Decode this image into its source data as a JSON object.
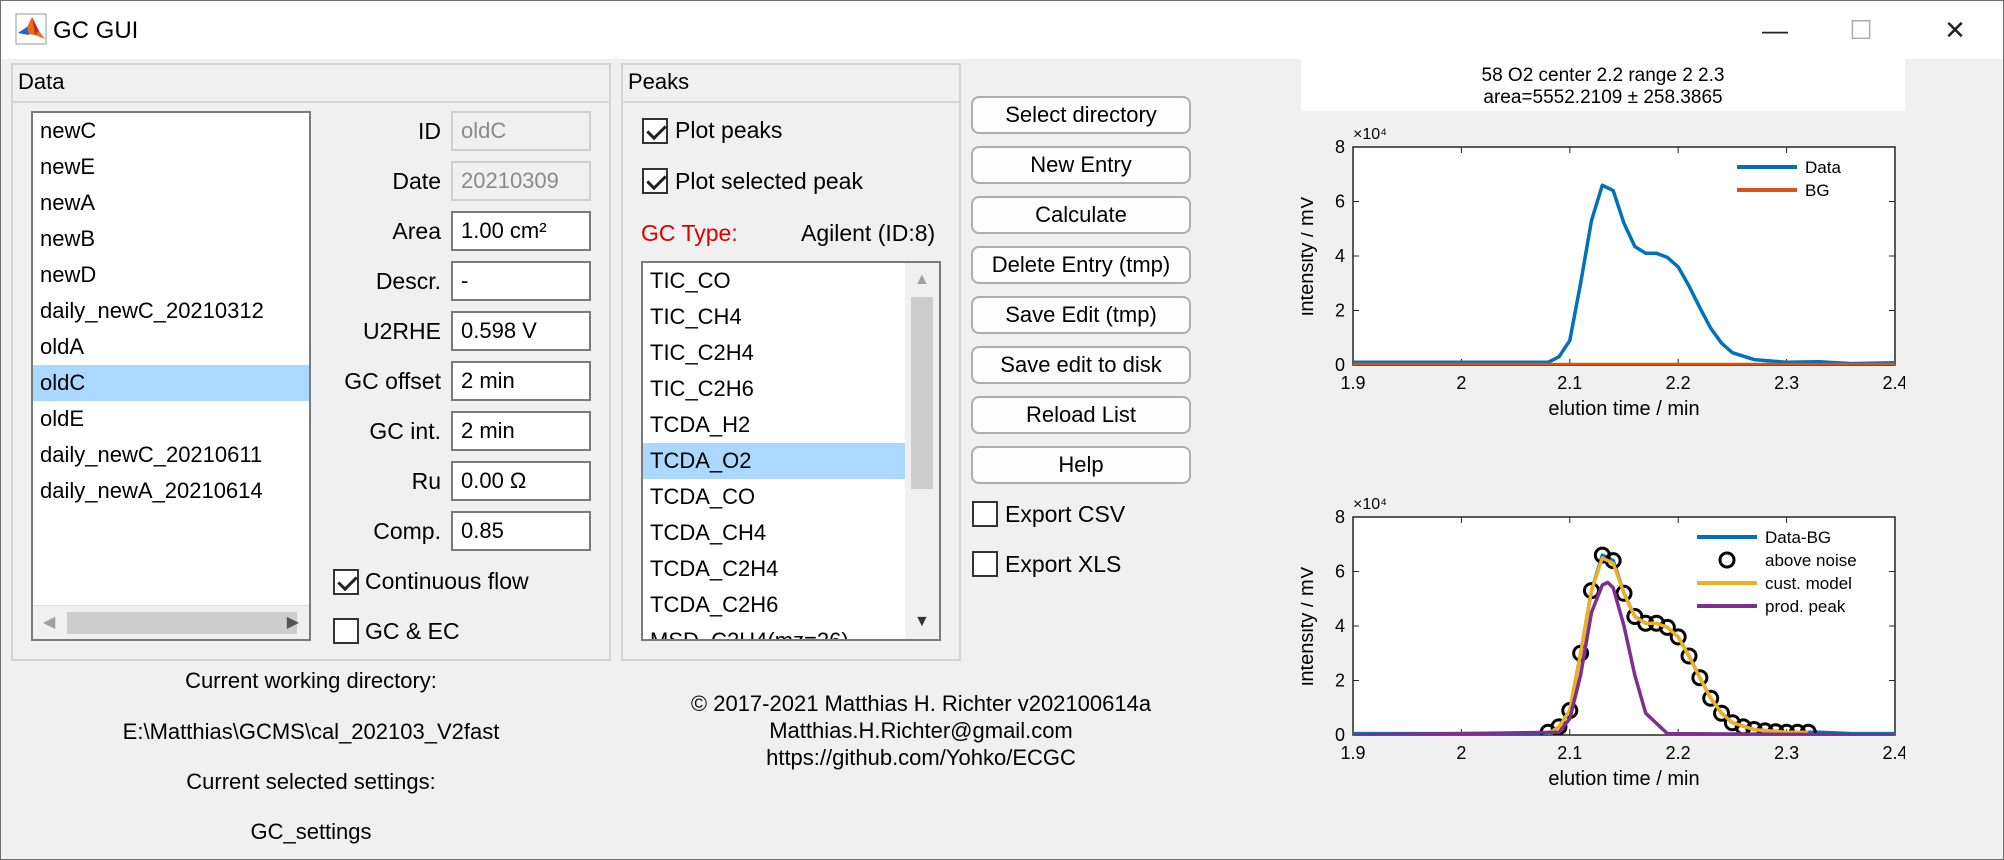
{
  "window": {
    "title": "GC GUI",
    "minimize": "—",
    "maximize": "☐",
    "close": "✕"
  },
  "data_panel": {
    "title": "Data",
    "items": [
      "newC",
      "newE",
      "newA",
      "newB",
      "newD",
      "daily_newC_20210312",
      "oldA",
      "oldC",
      "oldE",
      "daily_newC_20210611",
      "daily_newA_20210614"
    ],
    "selected_index": 7,
    "fields": [
      {
        "label": "ID",
        "value": "oldC",
        "disabled": true
      },
      {
        "label": "Date",
        "value": "20210309",
        "disabled": true
      },
      {
        "label": "Area",
        "value": "1.00 cm²",
        "disabled": false
      },
      {
        "label": "Descr.",
        "value": "-",
        "disabled": false
      },
      {
        "label": "U2RHE",
        "value": "0.598 V",
        "disabled": false
      },
      {
        "label": "GC offset",
        "value": "2 min",
        "disabled": false
      },
      {
        "label": "GC int.",
        "value": "2 min",
        "disabled": false
      },
      {
        "label": "Ru",
        "value": "0.00 Ω",
        "disabled": false
      },
      {
        "label": "Comp.",
        "value": "0.85",
        "disabled": false
      }
    ],
    "continuous_flow": {
      "label": "Continuous flow",
      "checked": true
    },
    "gc_ec": {
      "label": "GC & EC",
      "checked": false
    }
  },
  "peaks_panel": {
    "title": "Peaks",
    "plot_peaks": {
      "label": "Plot peaks",
      "checked": true
    },
    "plot_selected_peak": {
      "label": "Plot selected peak",
      "checked": true
    },
    "gc_type_label": "GC Type:",
    "gc_type_value": "Agilent (ID:8)",
    "items": [
      "TIC_CO",
      "TIC_CH4",
      "TIC_C2H4",
      "TIC_C2H6",
      "TCDA_H2",
      "TCDA_O2",
      "TCDA_CO",
      "TCDA_CH4",
      "TCDA_C2H4",
      "TCDA_C2H6",
      "MSD_C2H4(mz=26)"
    ],
    "selected_index": 5
  },
  "buttons": {
    "select_directory": "Select directory",
    "new_entry": "New Entry",
    "calculate": "Calculate",
    "delete_entry": "Delete Entry (tmp)",
    "save_edit": "Save Edit (tmp)",
    "save_edit_disk": "Save edit to disk",
    "reload_list": "Reload List",
    "help": "Help"
  },
  "export_csv": {
    "label": "Export CSV",
    "checked": false
  },
  "export_xls": {
    "label": "Export XLS",
    "checked": false
  },
  "status": {
    "cwd_label": "Current working directory:",
    "cwd_value": "E:\\Matthias\\GCMS\\cal_202103_V2fast",
    "settings_label": "Current selected settings:",
    "settings_value": "GC_settings"
  },
  "credits": {
    "line1": "© 2017-2021 Matthias H. Richter v202100614a",
    "line2": "Matthias.H.Richter@gmail.com",
    "line3": "https://github.com/Yohko/ECGC"
  },
  "colors": {
    "blue": "#0072bd",
    "orange": "#d95319",
    "yellow": "#edb120",
    "purple": "#7e2f8e",
    "red": "#e00000",
    "selected": "#aad8ff"
  },
  "chart_data": [
    {
      "type": "line",
      "title": "58 O2 center 2.2 range 2 2.3",
      "subtitle": "area=5552.2109 ± 258.3865",
      "xlabel": "elution time / min",
      "ylabel": "intensity / mV",
      "exponent_label": "×10⁴",
      "xlim": [
        1.9,
        2.4
      ],
      "ylim": [
        0,
        8
      ],
      "xticks": [
        "1.9",
        "2",
        "2.1",
        "2.2",
        "2.3",
        "2.4"
      ],
      "yticks": [
        "0",
        "2",
        "4",
        "6",
        "8"
      ],
      "legend": "top-right",
      "series": [
        {
          "name": "Data",
          "color": "#0072bd",
          "x": [
            1.9,
            2.08,
            2.09,
            2.1,
            2.11,
            2.12,
            2.13,
            2.14,
            2.15,
            2.16,
            2.17,
            2.18,
            2.19,
            2.2,
            2.21,
            2.22,
            2.23,
            2.24,
            2.25,
            2.27,
            2.3,
            2.33,
            2.36,
            2.4
          ],
          "y": [
            0.1,
            0.1,
            0.3,
            0.9,
            3.0,
            5.3,
            6.6,
            6.4,
            5.2,
            4.35,
            4.1,
            4.1,
            3.95,
            3.6,
            2.9,
            2.1,
            1.35,
            0.8,
            0.45,
            0.2,
            0.1,
            0.12,
            0.05,
            0.08
          ]
        },
        {
          "name": "BG",
          "color": "#d95319",
          "x": [
            1.9,
            2.4
          ],
          "y": [
            0.02,
            0.02
          ]
        }
      ]
    },
    {
      "type": "line",
      "xlabel": "elution time / min",
      "ylabel": "intensity / mV",
      "exponent_label": "×10⁴",
      "xlim": [
        1.9,
        2.4
      ],
      "ylim": [
        0,
        8
      ],
      "xticks": [
        "1.9",
        "2",
        "2.1",
        "2.2",
        "2.3",
        "2.4"
      ],
      "yticks": [
        "0",
        "2",
        "4",
        "6",
        "8"
      ],
      "legend": "top-right",
      "series": [
        {
          "name": "Data-BG",
          "color": "#0072bd",
          "x": [
            1.9,
            2.08,
            2.09,
            2.1,
            2.11,
            2.12,
            2.13,
            2.14,
            2.15,
            2.16,
            2.17,
            2.18,
            2.19,
            2.2,
            2.21,
            2.22,
            2.23,
            2.24,
            2.25,
            2.27,
            2.3,
            2.33,
            2.36,
            2.4
          ],
          "y": [
            0.05,
            0.05,
            0.3,
            0.9,
            3.0,
            5.3,
            6.6,
            6.4,
            5.2,
            4.35,
            4.1,
            4.1,
            3.95,
            3.6,
            2.9,
            2.1,
            1.35,
            0.8,
            0.45,
            0.2,
            0.1,
            0.1,
            0.05,
            0.05
          ]
        },
        {
          "name": "above noise",
          "color": "#000000",
          "marker": "circle",
          "x": [
            2.08,
            2.09,
            2.1,
            2.11,
            2.12,
            2.13,
            2.14,
            2.15,
            2.16,
            2.17,
            2.18,
            2.19,
            2.2,
            2.21,
            2.22,
            2.23,
            2.24,
            2.25,
            2.26,
            2.27,
            2.28,
            2.29,
            2.3,
            2.31,
            2.32
          ],
          "y": [
            0.1,
            0.3,
            0.9,
            3.0,
            5.3,
            6.6,
            6.4,
            5.2,
            4.35,
            4.1,
            4.1,
            3.95,
            3.6,
            2.9,
            2.1,
            1.35,
            0.8,
            0.45,
            0.3,
            0.2,
            0.15,
            0.12,
            0.1,
            0.1,
            0.1
          ]
        },
        {
          "name": "cust. model",
          "color": "#edb120",
          "x": [
            2.08,
            2.09,
            2.1,
            2.11,
            2.12,
            2.13,
            2.14,
            2.15,
            2.16,
            2.17,
            2.18,
            2.19,
            2.2,
            2.21,
            2.22,
            2.23,
            2.24,
            2.25,
            2.27,
            2.3,
            2.32
          ],
          "y": [
            0.05,
            0.3,
            0.9,
            3.0,
            5.3,
            6.5,
            6.3,
            5.2,
            4.35,
            4.1,
            4.1,
            3.95,
            3.6,
            2.9,
            2.1,
            1.35,
            0.8,
            0.45,
            0.2,
            0.1,
            0.1
          ]
        },
        {
          "name": "prod. peak",
          "color": "#7e2f8e",
          "x": [
            1.9,
            2.09,
            2.1,
            2.11,
            2.12,
            2.13,
            2.135,
            2.14,
            2.15,
            2.16,
            2.17,
            2.19,
            2.4
          ],
          "y": [
            0,
            0.1,
            0.6,
            2.2,
            4.5,
            5.5,
            5.6,
            5.4,
            4.0,
            2.2,
            0.8,
            0.05,
            0
          ]
        }
      ]
    }
  ]
}
